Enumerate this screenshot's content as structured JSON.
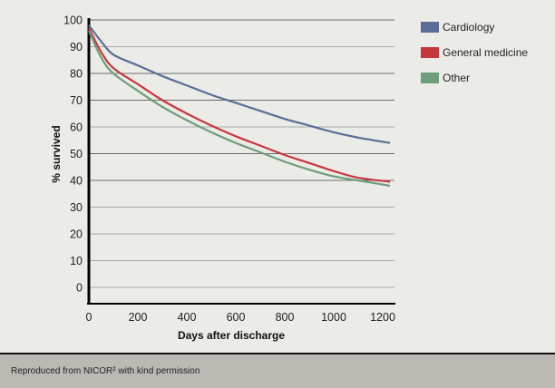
{
  "chart_data": {
    "type": "line",
    "xlabel": "Days after discharge",
    "ylabel": "% survived",
    "xlim": [
      0,
      1230
    ],
    "ylim": [
      0,
      100
    ],
    "xticks": [
      0,
      200,
      400,
      600,
      800,
      1000,
      1200
    ],
    "yticks": [
      0,
      10,
      20,
      30,
      40,
      50,
      60,
      70,
      80,
      90,
      100
    ],
    "grid": true,
    "legend_position": "right",
    "series": [
      {
        "name": "Cardiology",
        "color": "#5a6e96",
        "x": [
          0,
          50,
          100,
          200,
          300,
          400,
          500,
          600,
          700,
          800,
          900,
          1000,
          1100,
          1230
        ],
        "y": [
          98,
          92,
          87,
          83,
          79,
          75.5,
          72,
          69,
          66,
          63,
          60.5,
          58,
          56,
          54
        ]
      },
      {
        "name": "General medicine",
        "color": "#c8373d",
        "x": [
          0,
          50,
          100,
          200,
          300,
          400,
          500,
          600,
          700,
          800,
          900,
          1000,
          1100,
          1230
        ],
        "y": [
          97,
          88,
          82,
          76,
          70,
          65,
          60.5,
          56.5,
          53,
          49.5,
          46.5,
          43.5,
          41,
          39.5
        ]
      },
      {
        "name": "Other",
        "color": "#6f9e7c",
        "x": [
          0,
          50,
          100,
          200,
          300,
          400,
          500,
          600,
          700,
          800,
          900,
          1000,
          1100,
          1230
        ],
        "y": [
          96,
          86,
          80,
          73.5,
          67.5,
          62.5,
          58,
          54,
          50.5,
          47,
          44,
          41.5,
          40,
          38
        ]
      }
    ]
  },
  "footer": {
    "credit": "Reproduced from NICOR² with kind permission"
  }
}
